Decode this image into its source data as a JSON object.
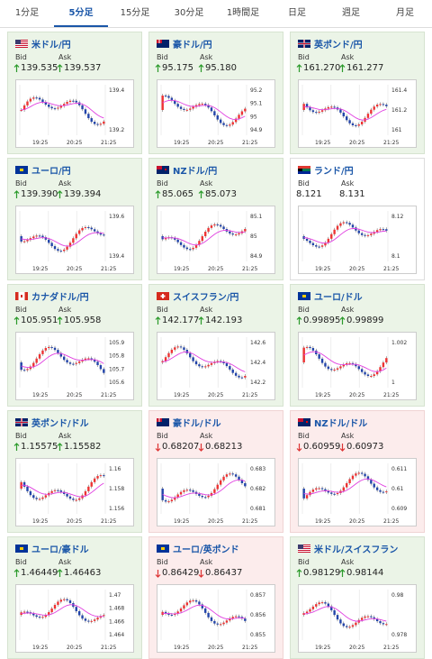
{
  "tabs": [
    {
      "label": "1分足"
    },
    {
      "label": "5分足",
      "active": true
    },
    {
      "label": "15分足"
    },
    {
      "label": "30分足"
    },
    {
      "label": "1時間足"
    },
    {
      "label": "日足"
    },
    {
      "label": "週足"
    },
    {
      "label": "月足"
    }
  ],
  "bid_label": "Bid",
  "ask_label": "Ask",
  "cards": [
    {
      "name": "米ドル/円",
      "bid": "139.535",
      "ask": "139.537",
      "trend": "up",
      "flag": "us",
      "yticks": [
        "139.4",
        "139.2"
      ],
      "xticks": [
        "19:25",
        "20:25",
        "21:25"
      ]
    },
    {
      "name": "豪ドル/円",
      "bid": "95.175",
      "ask": "95.180",
      "trend": "up",
      "flag": "au",
      "yticks": [
        "95.2",
        "95.1",
        "95",
        "94.9"
      ],
      "xticks": [
        "19:25",
        "20:25",
        "21:25"
      ]
    },
    {
      "name": "英ポンド/円",
      "bid": "161.270",
      "ask": "161.277",
      "trend": "up",
      "flag": "gb",
      "yticks": [
        "161.4",
        "161.2",
        "161"
      ],
      "xticks": [
        "19:25",
        "20:25",
        "21:25"
      ]
    },
    {
      "name": "ユーロ/円",
      "bid": "139.390",
      "ask": "139.394",
      "trend": "up",
      "flag": "eu",
      "yticks": [
        "139.6",
        "139.4"
      ],
      "xticks": [
        "19:25",
        "20:25",
        "21:25"
      ]
    },
    {
      "name": "NZドル/円",
      "bid": "85.065",
      "ask": "85.073",
      "trend": "up",
      "flag": "nz",
      "yticks": [
        "85.1",
        "85",
        "84.9"
      ],
      "xticks": [
        "19:25",
        "20:25",
        "21:25"
      ]
    },
    {
      "name": "ランド/円",
      "bid": "8.121",
      "ask": "8.131",
      "trend": "none",
      "flag": "za",
      "yticks": [
        "8.12",
        "8.1"
      ],
      "xticks": [
        "19:25",
        "20:25",
        "21:25"
      ]
    },
    {
      "name": "カナダドル/円",
      "bid": "105.951",
      "ask": "105.958",
      "trend": "up",
      "flag": "ca",
      "yticks": [
        "105.9",
        "105.8",
        "105.7",
        "105.6"
      ],
      "xticks": [
        "19:25",
        "20:25",
        "21:25"
      ]
    },
    {
      "name": "スイスフラン/円",
      "bid": "142.177",
      "ask": "142.193",
      "trend": "up",
      "flag": "ch",
      "yticks": [
        "142.6",
        "142.4",
        "142.2"
      ],
      "xticks": [
        "19:25",
        "20:25",
        "21:25"
      ]
    },
    {
      "name": "ユーロ/ドル",
      "bid": "0.99895",
      "ask": "0.99899",
      "trend": "up",
      "flag": "eu",
      "yticks": [
        "1.002",
        "1"
      ],
      "xticks": [
        "19:25",
        "20:25",
        "21:25"
      ]
    },
    {
      "name": "英ポンド/ドル",
      "bid": "1.15575",
      "ask": "1.15582",
      "trend": "up",
      "flag": "gb",
      "yticks": [
        "1.16",
        "1.158",
        "1.156"
      ],
      "xticks": [
        "19:25",
        "20:25",
        "21:25"
      ]
    },
    {
      "name": "豪ドル/ドル",
      "bid": "0.68207",
      "ask": "0.68213",
      "trend": "down",
      "flag": "au",
      "yticks": [
        "0.683",
        "0.682",
        "0.681"
      ],
      "xticks": [
        "19:25",
        "20:25",
        "21:25"
      ]
    },
    {
      "name": "NZドル/ドル",
      "bid": "0.60959",
      "ask": "0.60973",
      "trend": "down",
      "flag": "nz",
      "yticks": [
        "0.611",
        "0.61",
        "0.609"
      ],
      "xticks": [
        "19:25",
        "20:25",
        "21:25"
      ]
    },
    {
      "name": "ユーロ/豪ドル",
      "bid": "1.46449",
      "ask": "1.46463",
      "trend": "up",
      "flag": "eu",
      "yticks": [
        "1.47",
        "1.468",
        "1.466",
        "1.464"
      ],
      "xticks": [
        "19:25",
        "20:25",
        "21:25"
      ]
    },
    {
      "name": "ユーロ/英ポンド",
      "bid": "0.86429",
      "ask": "0.86437",
      "trend": "down",
      "flag": "eu",
      "yticks": [
        "0.857",
        "0.856",
        "0.855"
      ],
      "xticks": [
        "19:25",
        "20:25",
        "21:25"
      ]
    },
    {
      "name": "米ドル/スイスフラン",
      "bid": "0.98129",
      "ask": "0.98144",
      "trend": "up",
      "flag": "us",
      "yticks": [
        "0.98",
        "0.978"
      ],
      "xticks": [
        "19:25",
        "20:25",
        "21:25"
      ]
    }
  ]
}
